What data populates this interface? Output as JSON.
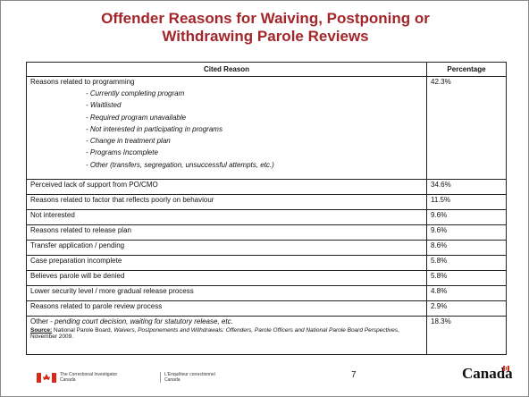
{
  "title": "Offender Reasons for Waiving, Postponing or Withdrawing Parole Reviews",
  "table": {
    "headers": [
      "Cited Reason",
      "Percentage"
    ],
    "rows": [
      {
        "reason": "Reasons related to programming",
        "percentage": "42.3%",
        "subitems": [
          "- Currently completing program",
          "- Waitlisted",
          "- Required program unavailable",
          "- Not interested in participating in programs",
          "- Change in treatment plan",
          "- Programs Incomplete",
          "- Other (transfers, segregation, unsuccessful attempts, etc.)"
        ]
      },
      {
        "reason": "Perceived lack of support from PO/CMO",
        "percentage": "34.6%"
      },
      {
        "reason": "Reasons related to factor that reflects poorly on behaviour",
        "percentage": "11.5%"
      },
      {
        "reason": "Not interested",
        "percentage": "9.6%"
      },
      {
        "reason": "Reasons related to release plan",
        "percentage": "9.6%"
      },
      {
        "reason": "Transfer application / pending",
        "percentage": "8.6%"
      },
      {
        "reason": "Case preparation incomplete",
        "percentage": "5.8%"
      },
      {
        "reason": "Believes parole will be denied",
        "percentage": "5.8%"
      },
      {
        "reason": "Lower security level / more gradual release process",
        "percentage": "4.8%"
      },
      {
        "reason": "Reasons related to parole review process",
        "percentage": "2.9%"
      },
      {
        "reason": "Other - ",
        "reason_detail": "pending court decision, waiting for statutory release, etc.",
        "percentage": "18.3%"
      }
    ]
  },
  "source": {
    "label": "Source:",
    "text": " National Parole Board, ",
    "publication": "Waivers, Postponements and Withdrawals: Offenders, Parole Officers and National Parole Board Perspectives",
    "date": ", November 2009."
  },
  "footer": {
    "org_en": "The Correctional Investigator",
    "country_en": "Canada",
    "org_fr": "L'Enquêteur correctionnel",
    "country_fr": "Canada",
    "page": "7",
    "wordmark": "Canada"
  }
}
